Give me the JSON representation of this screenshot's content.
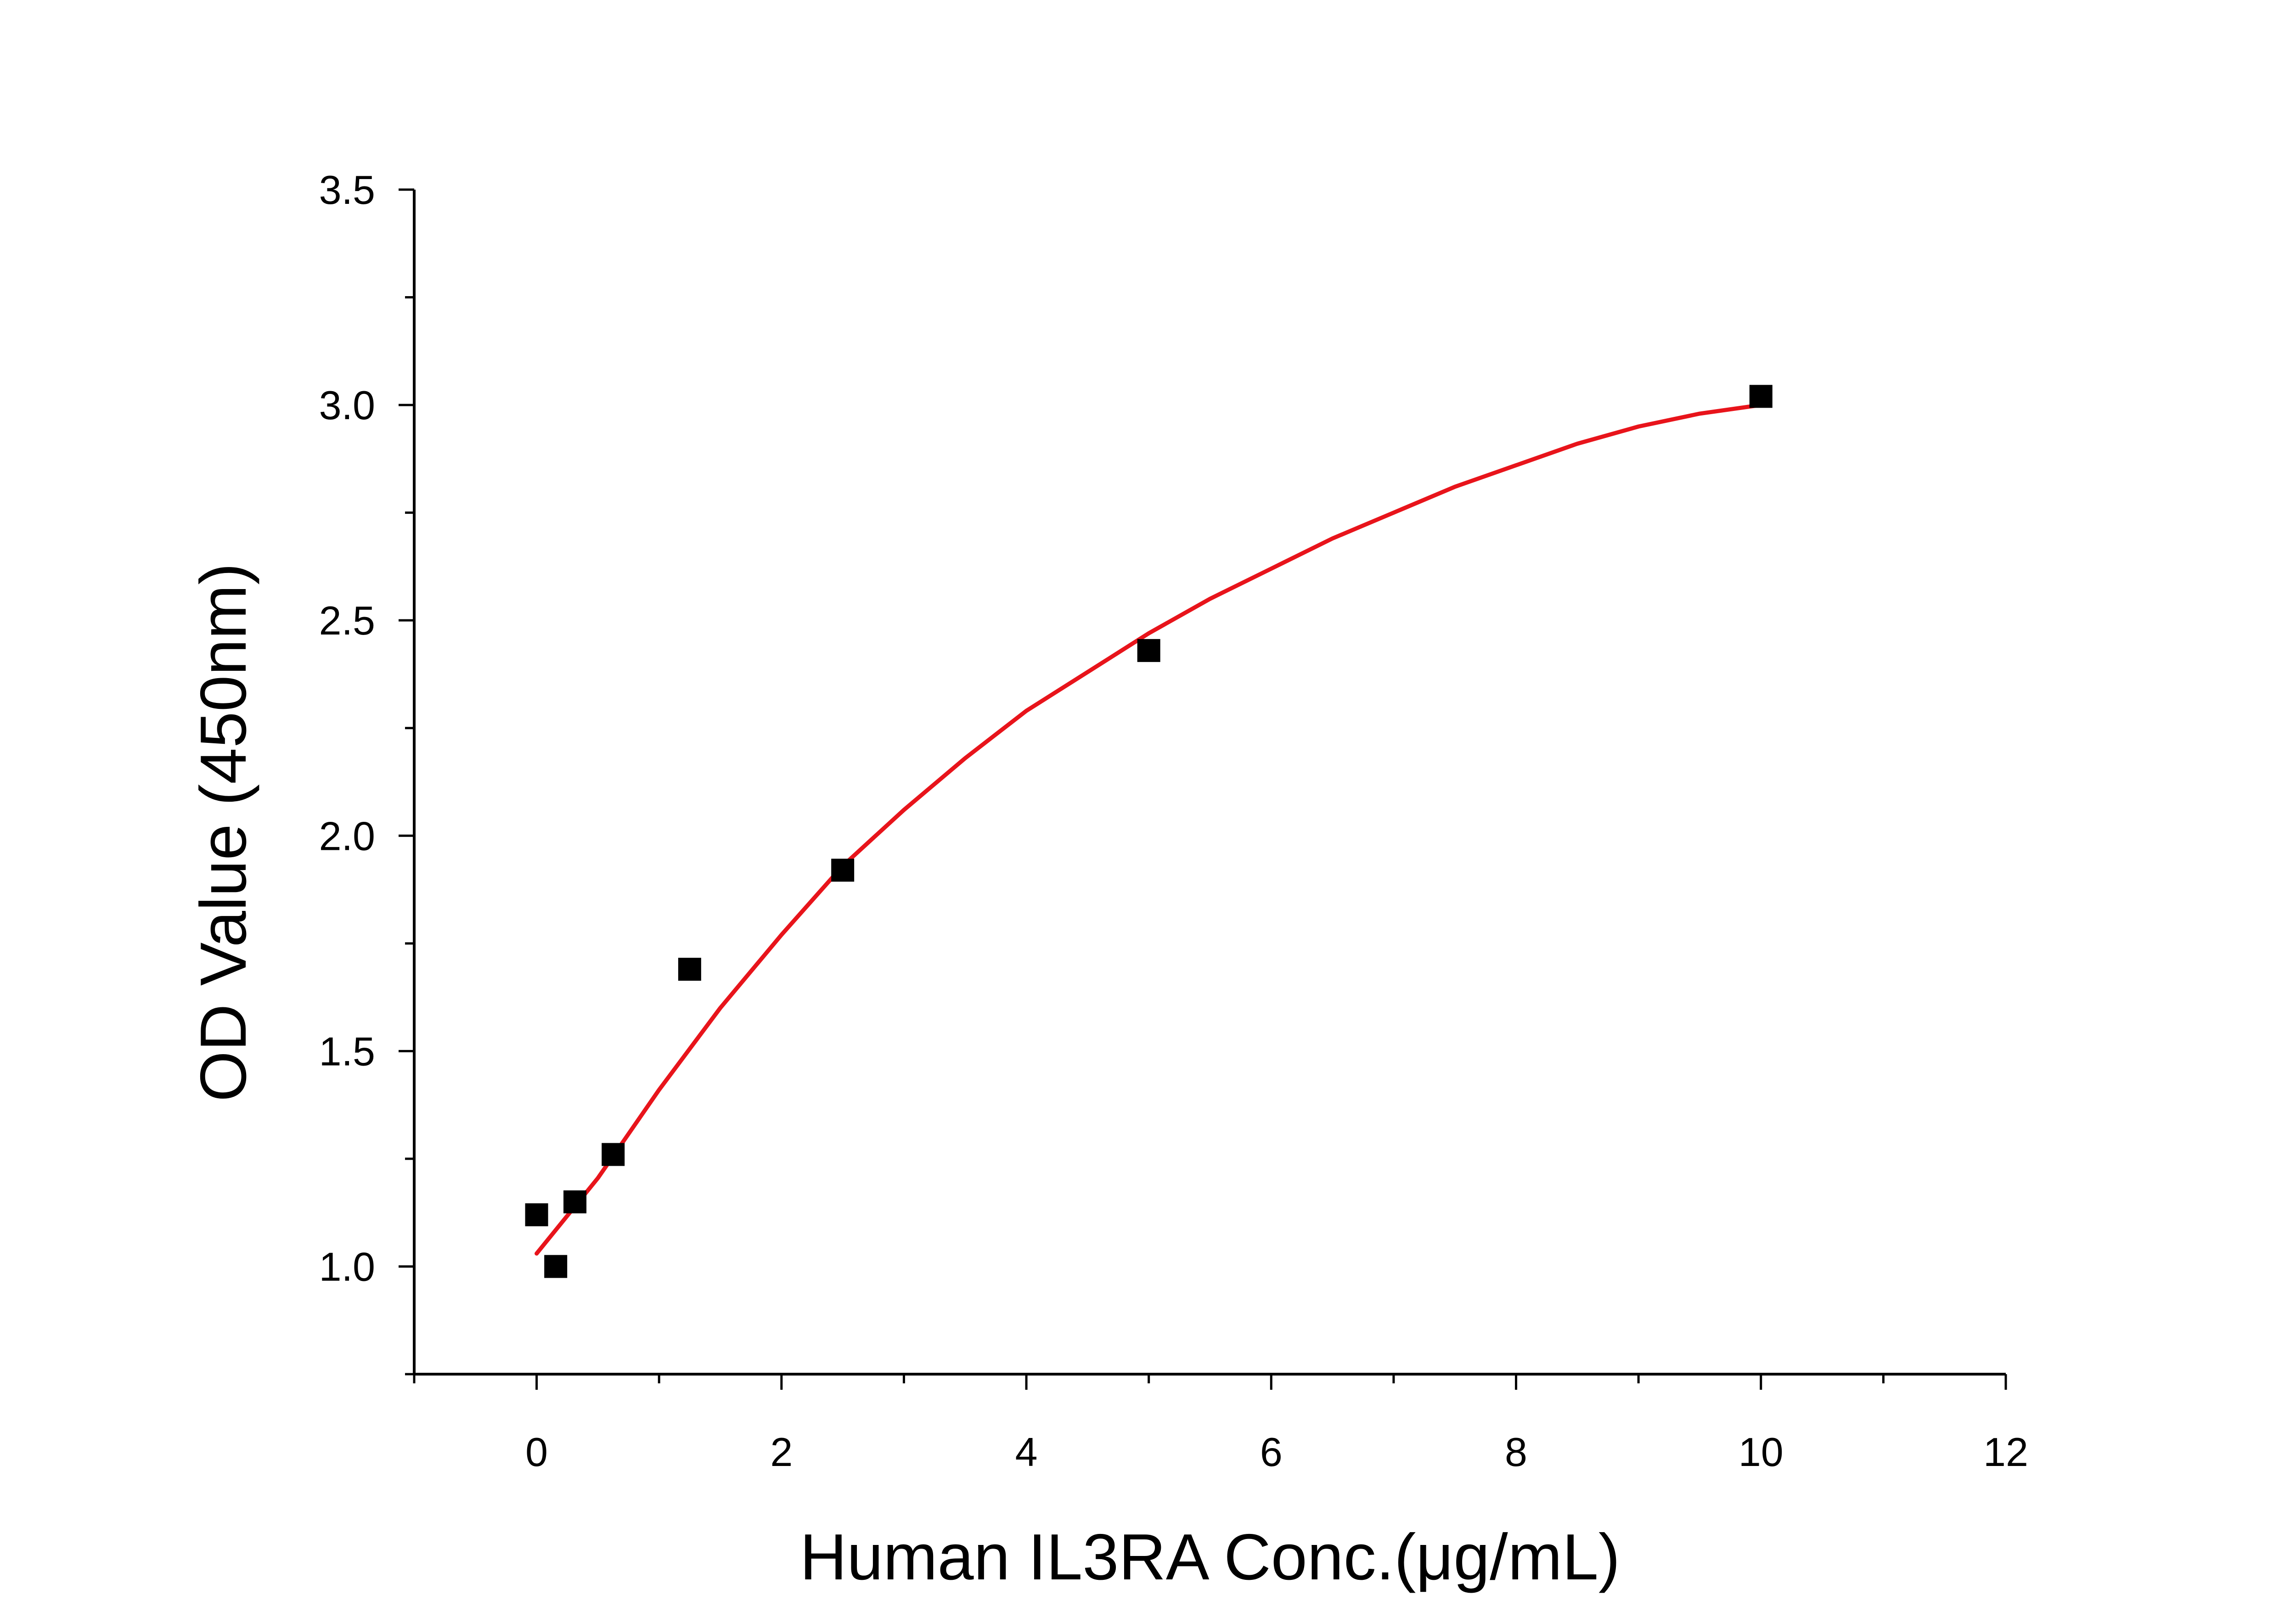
{
  "chart_data": {
    "type": "scatter",
    "title": "",
    "xlabel": "Human IL3RA Conc.(μg/mL)",
    "ylabel": "OD Value (450nm)",
    "xlim": [
      -1,
      12
    ],
    "ylim": [
      0.75,
      3.5
    ],
    "x_ticks": [
      0,
      2,
      4,
      6,
      8,
      10,
      12
    ],
    "x_tick_labels": [
      "0",
      "2",
      "4",
      "6",
      "8",
      "10",
      "12"
    ],
    "x_minor_ticks": [
      -1,
      1,
      3,
      5,
      7,
      9,
      11
    ],
    "y_ticks": [
      1.0,
      1.5,
      2.0,
      2.5,
      3.0,
      3.5
    ],
    "y_tick_labels": [
      "1.0",
      "1.5",
      "2.0",
      "2.5",
      "3.0",
      "3.5"
    ],
    "y_minor_ticks": [
      1.25,
      1.75,
      2.25,
      2.75,
      3.25
    ],
    "grid": false,
    "legend": "none",
    "series": [
      {
        "type": "scatter",
        "marker": "square",
        "color": "#000000",
        "x": [
          0,
          0.156,
          0.313,
          0.625,
          1.25,
          2.5,
          5,
          10
        ],
        "y": [
          1.12,
          1.0,
          1.15,
          1.26,
          1.69,
          1.92,
          2.43,
          3.02
        ]
      },
      {
        "type": "line",
        "color": "#e8141b",
        "x": [
          0,
          0.5,
          1,
          1.5,
          2,
          2.5,
          3,
          3.5,
          4,
          4.5,
          5,
          5.5,
          6,
          6.5,
          7,
          7.5,
          8,
          8.5,
          9,
          9.5,
          10
        ],
        "y": [
          1.03,
          1.205,
          1.41,
          1.6,
          1.77,
          1.93,
          2.06,
          2.18,
          2.29,
          2.38,
          2.47,
          2.55,
          2.62,
          2.69,
          2.75,
          2.81,
          2.86,
          2.91,
          2.95,
          2.98,
          3.0
        ]
      }
    ]
  }
}
